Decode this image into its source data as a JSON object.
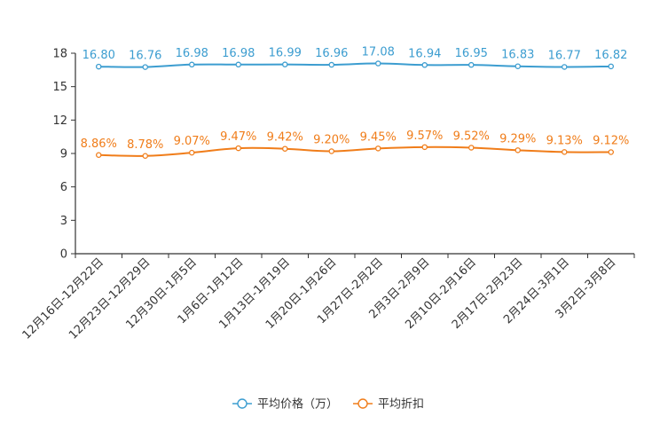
{
  "chart_data": {
    "type": "line",
    "title": "",
    "xlabel": "",
    "ylabel": "",
    "ylim": [
      0,
      18
    ],
    "yticks": [
      0,
      3,
      6,
      9,
      12,
      15,
      18
    ],
    "categories": [
      "12月16日-12月22日",
      "12月23日-12月29日",
      "12月30日-1月5日",
      "1月6日-1月12日",
      "1月13日-1月19日",
      "1月20日-1月26日",
      "1月27日-2月2日",
      "2月3日-2月9日",
      "2月10日-2月16日",
      "2月17日-2月23日",
      "2月24日-3月1日",
      "3月2日-3月8日"
    ],
    "series": [
      {
        "name": "平均价格（万）",
        "color": "#3c9dd0",
        "values": [
          16.8,
          16.76,
          16.98,
          16.98,
          16.99,
          16.96,
          17.08,
          16.94,
          16.95,
          16.83,
          16.77,
          16.82
        ],
        "labels": [
          "16.80",
          "16.76",
          "16.98",
          "16.98",
          "16.99",
          "16.96",
          "17.08",
          "16.94",
          "16.95",
          "16.83",
          "16.77",
          "16.82"
        ]
      },
      {
        "name": "平均折扣",
        "color": "#f07d1a",
        "values": [
          8.86,
          8.78,
          9.07,
          9.47,
          9.42,
          9.2,
          9.45,
          9.57,
          9.52,
          9.29,
          9.13,
          9.12
        ],
        "labels": [
          "8.86%",
          "8.78%",
          "9.07%",
          "9.47%",
          "9.42%",
          "9.20%",
          "9.45%",
          "9.57%",
          "9.52%",
          "9.29%",
          "9.13%",
          "9.12%"
        ]
      }
    ],
    "legend_position": "bottom"
  }
}
